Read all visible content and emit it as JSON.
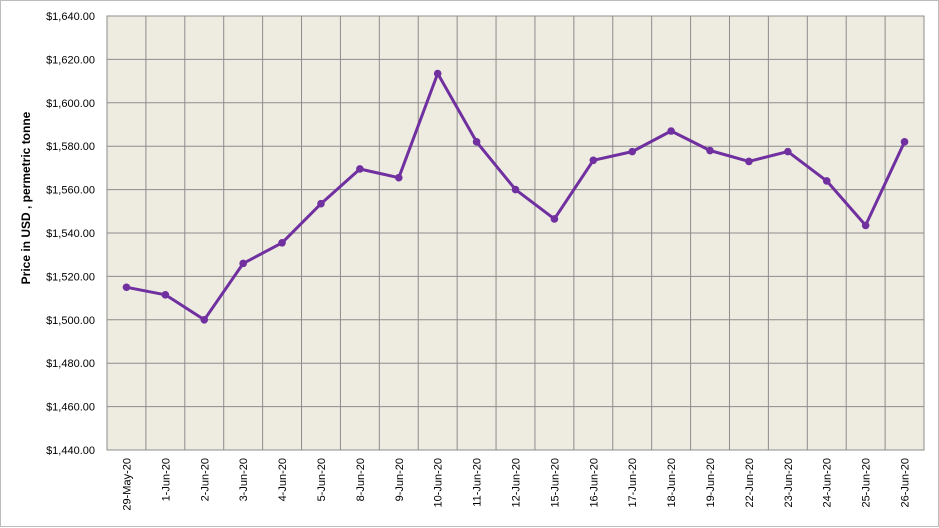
{
  "chart_data": {
    "type": "line",
    "title": "",
    "xlabel": "",
    "ylabel": "Price in USD , permetric tonne",
    "ylim": [
      1440,
      1640
    ],
    "y_tick_step": 20,
    "grid": true,
    "legend": "none",
    "categories": [
      "29-May-20",
      "1-Jun-20",
      "2-Jun-20",
      "3-Jun-20",
      "4-Jun-20",
      "5-Jun-20",
      "8-Jun-20",
      "9-Jun-20",
      "10-Jun-20",
      "11-Jun-20",
      "12-Jun-20",
      "15-Jun-20",
      "16-Jun-20",
      "17-Jun-20",
      "18-Jun-20",
      "19-Jun-20",
      "22-Jun-20",
      "23-Jun-20",
      "24-Jun-20",
      "25-Jun-20",
      "26-Jun-20"
    ],
    "series": [
      {
        "values": [
          1515,
          1511.5,
          1500,
          1526,
          1535.5,
          1553.5,
          1569.5,
          1565.5,
          1613.5,
          1582,
          1560,
          1546.5,
          1573.5,
          1577.5,
          1587,
          1578,
          1573,
          1577.5,
          1564,
          1543.5,
          1582
        ],
        "color": "#7030a0"
      }
    ],
    "plot_background": "#eeece1",
    "grid_color": "#8c8c8c"
  }
}
